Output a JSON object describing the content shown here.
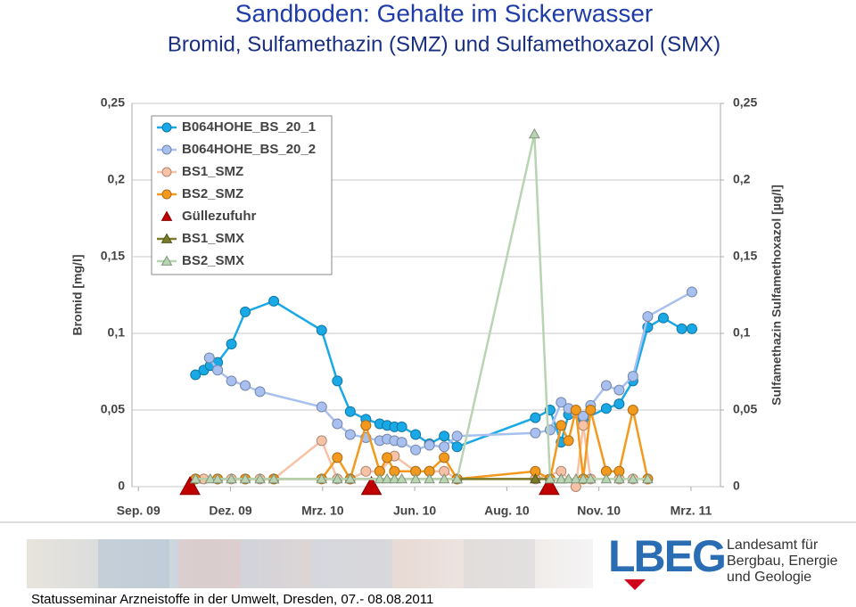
{
  "chart_data": {
    "type": "line",
    "title": "Sandboden: Gehalte im Sickerwasser",
    "subtitle": "Bromid, Sulfamethazin (SMZ) und Sulfamethoxazol (SMX)",
    "y_label": "Bromid [mg/l]",
    "y2_label": "Sulfamethazin Sulfamethoxazol [µg/l]",
    "xlim": [
      -0.07,
      6.32
    ],
    "xticks": [
      {
        "value": 0,
        "label": "Sep. 09"
      },
      {
        "value": 1,
        "label": "Dez. 09"
      },
      {
        "value": 2,
        "label": "Mrz. 10"
      },
      {
        "value": 3,
        "label": "Jun. 10"
      },
      {
        "value": 4,
        "label": "Aug. 10"
      },
      {
        "value": 5,
        "label": "Nov. 10"
      },
      {
        "value": 6,
        "label": "Mrz. 11"
      }
    ],
    "ylim": [
      0,
      0.25
    ],
    "yticks": [
      0,
      {
        "value": 0.05,
        "label": "0,05"
      },
      {
        "value": 0.1,
        "label": "0,1"
      },
      {
        "value": 0.15,
        "label": "0,15"
      },
      {
        "value": 0.2,
        "label": "0,2"
      },
      {
        "value": 0.25,
        "label": "0,25"
      }
    ],
    "y2lim": [
      0,
      0.25
    ],
    "y2ticks": [
      0,
      {
        "value": 0.05,
        "label": "0,05"
      },
      {
        "value": 0.1,
        "label": "0,1"
      },
      {
        "value": 0.15,
        "label": "0,15"
      },
      {
        "value": 0.2,
        "label": "0,2"
      },
      {
        "value": 0.25,
        "label": "0,25"
      }
    ],
    "grid": true,
    "legend": "upper left",
    "series": [
      {
        "name": "B064HOHE_BS_20_1",
        "color": "#19a9e6",
        "marker": "circle",
        "line": true,
        "x": [
          0.62,
          0.71,
          0.78,
          0.86,
          1.01,
          1.16,
          1.47,
          1.99,
          2.16,
          2.3,
          2.47,
          2.62,
          2.7,
          2.78,
          2.86,
          3.01,
          3.16,
          3.32,
          3.46,
          4.31,
          4.47,
          4.59,
          4.67,
          4.83,
          5.08,
          5.22,
          5.37,
          5.53,
          5.7,
          5.9,
          6.01
        ],
        "values": [
          0.073,
          0.076,
          0.079,
          0.081,
          0.093,
          0.114,
          0.121,
          0.102,
          0.069,
          0.049,
          0.044,
          0.041,
          0.04,
          0.039,
          0.039,
          0.034,
          0.028,
          0.033,
          0.026,
          0.045,
          0.05,
          0.029,
          0.047,
          0.044,
          0.051,
          0.054,
          0.069,
          0.104,
          0.11,
          0.103,
          0.103
        ]
      },
      {
        "name": "B064HOHE_BS_20_2",
        "color": "#a8c0f0",
        "marker": "circle",
        "line": true,
        "x": [
          0.77,
          0.86,
          1.01,
          1.16,
          1.32,
          1.99,
          2.16,
          2.3,
          2.47,
          2.62,
          2.7,
          2.78,
          2.86,
          3.01,
          3.16,
          3.32,
          3.46,
          4.31,
          4.47,
          4.59,
          4.67,
          4.75,
          4.83,
          4.91,
          5.08,
          5.22,
          5.37,
          5.53,
          6.01
        ],
        "values": [
          0.084,
          0.076,
          0.069,
          0.066,
          0.062,
          0.052,
          0.041,
          0.034,
          0.032,
          0.03,
          0.031,
          0.03,
          0.029,
          0.024,
          0.027,
          0.026,
          0.033,
          0.035,
          0.037,
          0.055,
          0.051,
          0.048,
          0.046,
          0.053,
          0.066,
          0.063,
          0.072,
          0.111,
          0.127
        ]
      },
      {
        "name": "BS1_SMZ",
        "color": "#f7c2a6",
        "marker": "circle",
        "line": true,
        "axis": "y2",
        "x": [
          0.62,
          0.71,
          0.86,
          1.01,
          1.16,
          1.32,
          1.47,
          1.99,
          2.16,
          2.3,
          2.47,
          2.62,
          2.78,
          3.01,
          3.16,
          3.32,
          3.46,
          4.31,
          4.59,
          4.75,
          4.83,
          4.91,
          5.22,
          5.37,
          5.53
        ],
        "values": [
          0.005,
          0.005,
          0.005,
          0.005,
          0.005,
          0.005,
          0.005,
          0.03,
          0.005,
          0.005,
          0.01,
          0.01,
          0.02,
          0.01,
          0.01,
          0.01,
          0.005,
          0.005,
          0.01,
          0.0,
          0.04,
          0.005,
          0.005,
          0.005,
          0.005
        ]
      },
      {
        "name": "BS2_SMZ",
        "color": "#f39a1e",
        "marker": "circle",
        "line": true,
        "axis": "y2",
        "x": [
          0.62,
          0.86,
          1.16,
          1.47,
          1.99,
          2.16,
          2.3,
          2.47,
          2.62,
          2.7,
          2.78,
          3.01,
          3.16,
          3.32,
          3.46,
          4.31,
          4.47,
          4.59,
          4.67,
          4.75,
          4.83,
          4.91,
          5.08,
          5.22,
          5.37,
          5.53
        ],
        "values": [
          0.005,
          0.005,
          0.005,
          0.005,
          0.005,
          0.019,
          0.005,
          0.04,
          0.01,
          0.019,
          0.01,
          0.01,
          0.01,
          0.019,
          0.005,
          0.01,
          0.005,
          0.04,
          0.03,
          0.05,
          0.005,
          0.05,
          0.01,
          0.01,
          0.05,
          0.005
        ]
      },
      {
        "name": "Güllezufuhr",
        "color": "#c00000",
        "marker": "triangle",
        "line": false,
        "axis": "y2",
        "x": [
          0.56,
          2.53,
          4.46
        ],
        "values": [
          0,
          0,
          0
        ]
      },
      {
        "name": "BS1_SMX",
        "color": "#7a7a2a",
        "marker": "triangle",
        "line": true,
        "axis": "y2",
        "x": [
          0.62,
          1.47,
          2.3,
          3.46,
          4.31,
          4.59
        ],
        "values": [
          0.005,
          0.005,
          0.005,
          0.005,
          0.005,
          0.005
        ]
      },
      {
        "name": "BS2_SMX",
        "color": "#b8d4b2",
        "marker": "triangle",
        "line": true,
        "axis": "y2",
        "x": [
          0.62,
          0.78,
          0.86,
          1.01,
          1.16,
          1.32,
          1.47,
          1.99,
          2.16,
          2.3,
          2.62,
          2.7,
          2.78,
          2.86,
          3.01,
          3.16,
          3.32,
          3.46,
          4.3,
          4.47,
          4.59,
          4.67,
          4.75,
          4.83,
          4.91,
          5.08,
          5.22,
          5.37,
          5.53
        ],
        "values": [
          0.005,
          0.005,
          0.005,
          0.005,
          0.005,
          0.005,
          0.005,
          0.005,
          0.005,
          0.005,
          0.005,
          0.005,
          0.005,
          0.005,
          0.005,
          0.005,
          0.005,
          0.005,
          0.23,
          0.005,
          0.005,
          0.005,
          0.005,
          0.005,
          0.005,
          0.005,
          0.005,
          0.005,
          0.005
        ]
      }
    ]
  },
  "slide": {
    "footer": "Statusseminar Arzneistoffe in der Umwelt, Dresden, 07.- 08.08.2011",
    "logo": {
      "mark": "LBEG",
      "lines": [
        "Landesamt für",
        "Bergbau, Energie",
        "und Geologie"
      ]
    }
  }
}
